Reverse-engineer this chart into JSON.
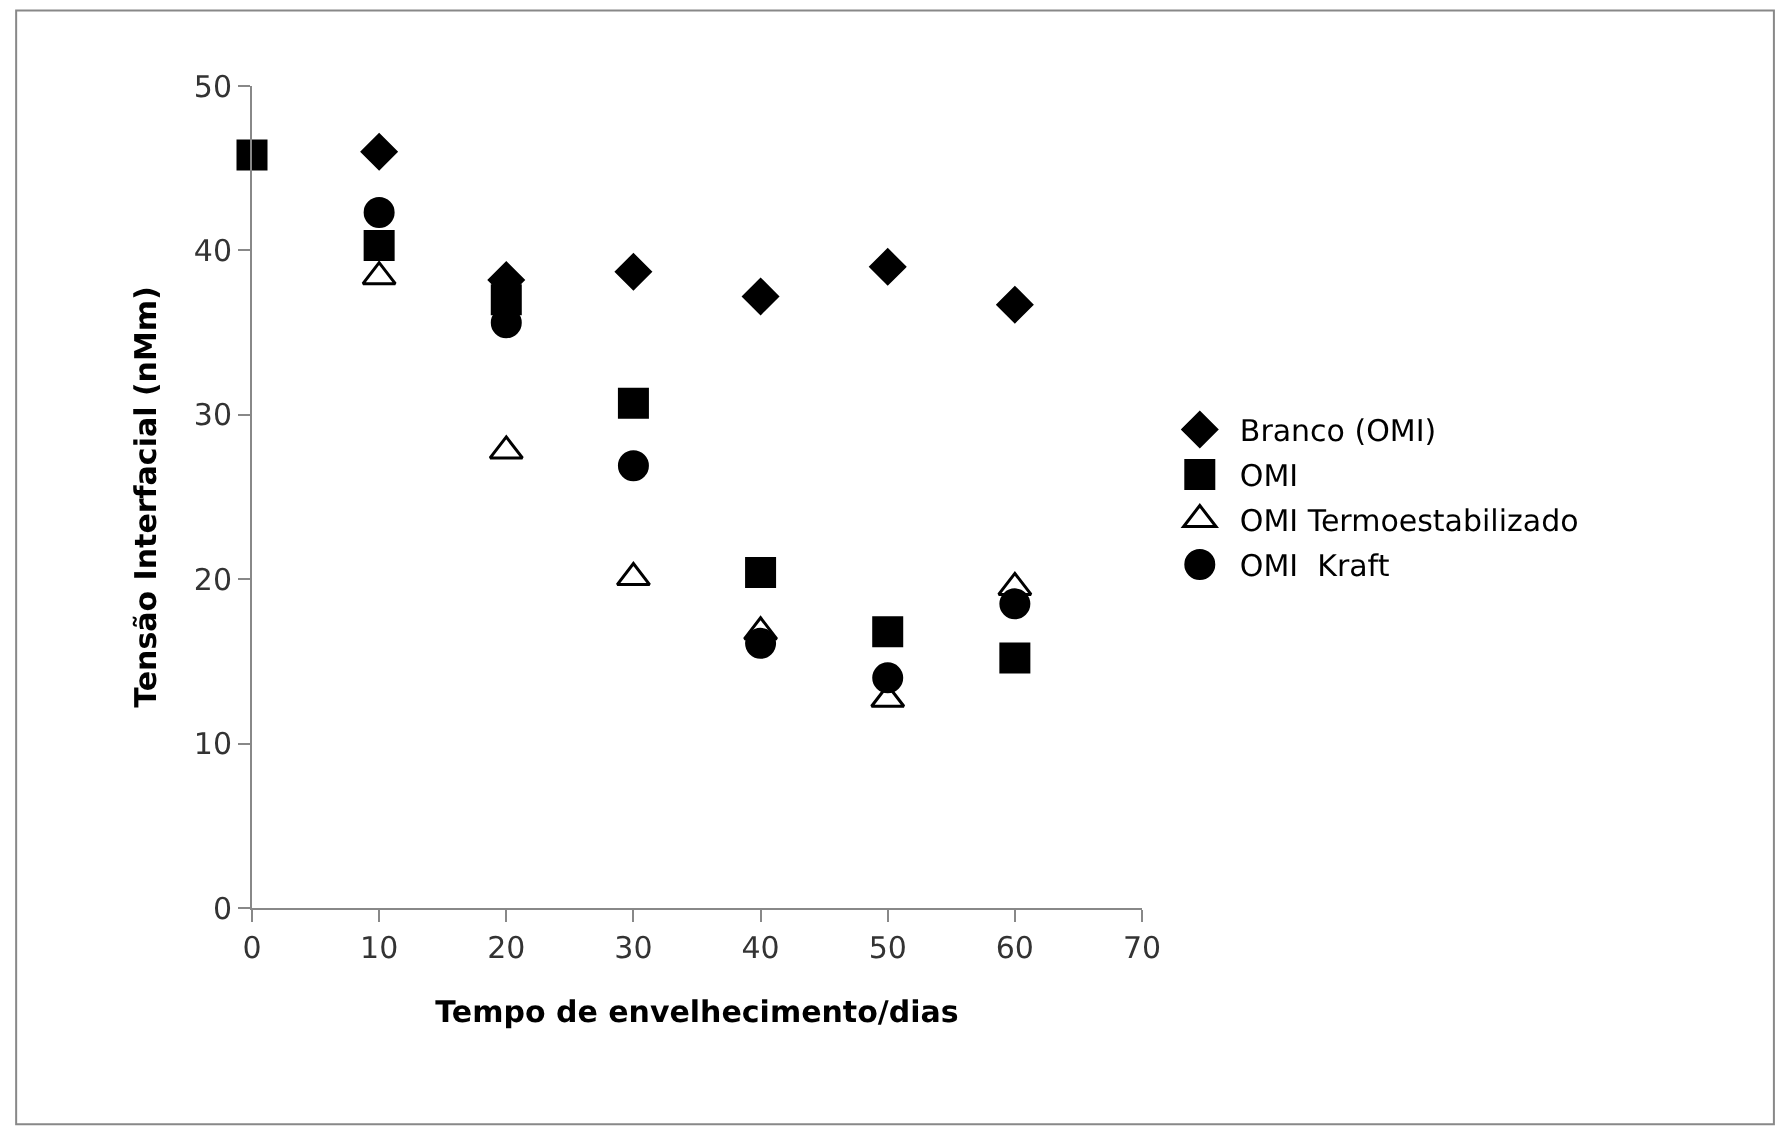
{
  "chart_data": {
    "type": "scatter",
    "xlabel": "Tempo de envelhecimento/dias",
    "ylabel": "Tensão Interfacial (nMm)",
    "x": [
      0,
      10,
      20,
      30,
      40,
      50,
      60
    ],
    "series": [
      {
        "name": "Branco (OMI)",
        "color": "#000000",
        "marker": "diamond",
        "values": [
          null,
          46.0,
          38.2,
          38.7,
          37.2,
          39.0,
          36.7
        ]
      },
      {
        "name": "OMI",
        "color": "#000000",
        "marker": "square",
        "values": [
          45.8,
          40.3,
          37.0,
          30.7,
          20.4,
          16.8,
          15.2
        ]
      },
      {
        "name": "OMI Termoestabilizado",
        "color": "#000000",
        "marker": "triangle",
        "values": [
          null,
          38.4,
          27.8,
          20.1,
          16.8,
          12.7,
          19.5
        ]
      },
      {
        "name": "OMI  Kraft",
        "color": "#000000",
        "marker": "circle",
        "values": [
          null,
          42.3,
          35.6,
          26.9,
          16.1,
          14.0,
          18.5
        ]
      }
    ],
    "xlim": [
      0,
      70
    ],
    "xticks": [
      0,
      10,
      20,
      30,
      40,
      50,
      60,
      70
    ],
    "ylim": [
      0,
      50
    ],
    "yticks": [
      0,
      10,
      20,
      30,
      40,
      50
    ],
    "legend": "right"
  }
}
